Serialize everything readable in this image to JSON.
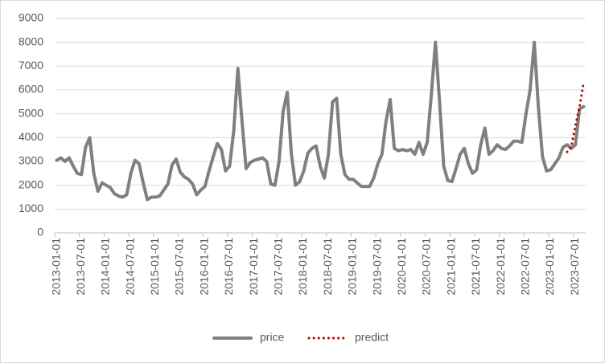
{
  "chart_data": {
    "type": "line",
    "categories": [
      "2013-01-01",
      null,
      null,
      null,
      null,
      null,
      "2013-07-01",
      null,
      null,
      null,
      null,
      null,
      "2014-01-01",
      null,
      null,
      null,
      null,
      null,
      "2014-07-01",
      null,
      null,
      null,
      null,
      null,
      "2015-01-01",
      null,
      null,
      null,
      null,
      null,
      "2015-07-01",
      null,
      null,
      null,
      null,
      null,
      "2016-01-01",
      null,
      null,
      null,
      null,
      null,
      "2016-07-01",
      null,
      null,
      null,
      null,
      null,
      "2017-01-01",
      null,
      null,
      null,
      null,
      null,
      "2017-07-01",
      null,
      null,
      null,
      null,
      null,
      "2018-01-01",
      null,
      null,
      null,
      null,
      null,
      "2018-07-01",
      null,
      null,
      null,
      null,
      null,
      "2019-01-01",
      null,
      null,
      null,
      null,
      null,
      "2019-07-01",
      null,
      null,
      null,
      null,
      null,
      "2020-01-01",
      null,
      null,
      null,
      null,
      null,
      "2020-07-01",
      null,
      null,
      null,
      null,
      null,
      "2021-01-01",
      null,
      null,
      null,
      null,
      null,
      "2021-07-01",
      null,
      null,
      null,
      null,
      null,
      "2022-01-01",
      null,
      null,
      null,
      null,
      null,
      "2022-07-01",
      null,
      null,
      null,
      null,
      null,
      "2023-01-01",
      null,
      null,
      null,
      null,
      null,
      "2023-07-01",
      null,
      null
    ],
    "series": [
      {
        "name": "price",
        "color": "#808080",
        "style": "solid",
        "values": [
          3050,
          3150,
          3000,
          3150,
          2800,
          2500,
          2450,
          3600,
          4000,
          2500,
          1750,
          2100,
          2000,
          1900,
          1650,
          1550,
          1500,
          1600,
          2500,
          3050,
          2900,
          2100,
          1400,
          1500,
          1500,
          1550,
          1800,
          2050,
          2850,
          3100,
          2550,
          2350,
          2250,
          2050,
          1600,
          1800,
          1950,
          2600,
          3200,
          3750,
          3500,
          2600,
          2800,
          4300,
          6900,
          4700,
          2700,
          2950,
          3050,
          3100,
          3150,
          3000,
          2050,
          2000,
          3000,
          5100,
          5900,
          3300,
          2000,
          2150,
          2600,
          3350,
          3550,
          3650,
          2800,
          2300,
          3300,
          5500,
          5650,
          3300,
          2450,
          2250,
          2250,
          2100,
          1950,
          1950,
          1950,
          2300,
          2900,
          3300,
          4700,
          5600,
          3550,
          3450,
          3500,
          3450,
          3500,
          3300,
          3800,
          3300,
          3800,
          5800,
          8000,
          5500,
          2800,
          2200,
          2150,
          2700,
          3300,
          3550,
          2900,
          2500,
          2650,
          3700,
          4400,
          3300,
          3450,
          3700,
          3550,
          3500,
          3650,
          3850,
          3850,
          3800,
          5000,
          6000,
          8000,
          5300,
          3200,
          2600,
          2650,
          2900,
          3150,
          3600,
          3700,
          3550,
          3700,
          5200,
          5300
        ]
      },
      {
        "name": "predict",
        "color": "#c00000",
        "style": "dotted",
        "values": [
          null,
          null,
          null,
          null,
          null,
          null,
          null,
          null,
          null,
          null,
          null,
          null,
          null,
          null,
          null,
          null,
          null,
          null,
          null,
          null,
          null,
          null,
          null,
          null,
          null,
          null,
          null,
          null,
          null,
          null,
          null,
          null,
          null,
          null,
          null,
          null,
          null,
          null,
          null,
          null,
          null,
          null,
          null,
          null,
          null,
          null,
          null,
          null,
          null,
          null,
          null,
          null,
          null,
          null,
          null,
          null,
          null,
          null,
          null,
          null,
          null,
          null,
          null,
          null,
          null,
          null,
          null,
          null,
          null,
          null,
          null,
          null,
          null,
          null,
          null,
          null,
          null,
          null,
          null,
          null,
          null,
          null,
          null,
          null,
          null,
          null,
          null,
          null,
          null,
          null,
          null,
          null,
          null,
          null,
          null,
          null,
          null,
          null,
          null,
          null,
          null,
          null,
          null,
          null,
          null,
          null,
          null,
          null,
          null,
          null,
          null,
          null,
          null,
          null,
          null,
          null,
          null,
          null,
          null,
          null,
          null,
          null,
          null,
          null,
          3400,
          3600,
          4500,
          5300,
          6300
        ]
      }
    ],
    "ylim": [
      0,
      9000
    ],
    "yticks": [
      0,
      1000,
      2000,
      3000,
      4000,
      5000,
      6000,
      7000,
      8000,
      9000
    ],
    "grid": true,
    "legend": "bottom"
  }
}
